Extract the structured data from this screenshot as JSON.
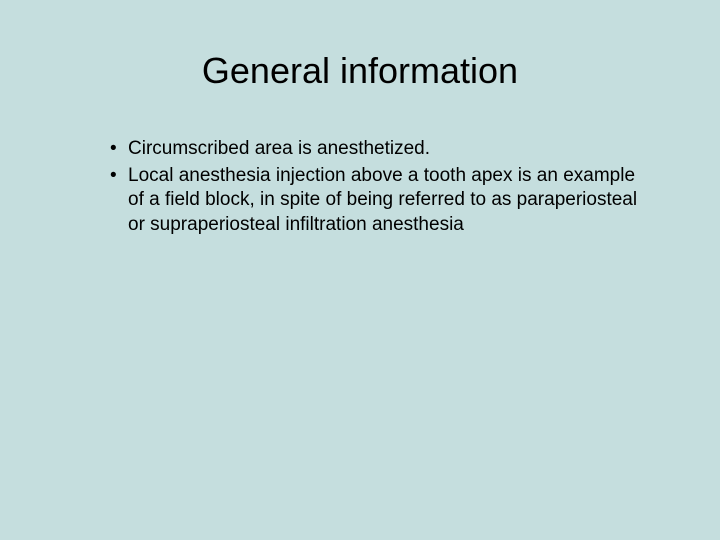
{
  "slide": {
    "title": "General information",
    "bullets": [
      "Circumscribed area is anesthetized.",
      "Local anesthesia injection above a tooth apex is an example of a field block, in spite of being referred to as paraperiosteal or supraperiosteal infiltration anesthesia"
    ],
    "background_color": "#c5dede",
    "text_color": "#000000",
    "title_fontsize": 36,
    "body_fontsize": 19,
    "font_family": "Arial"
  }
}
